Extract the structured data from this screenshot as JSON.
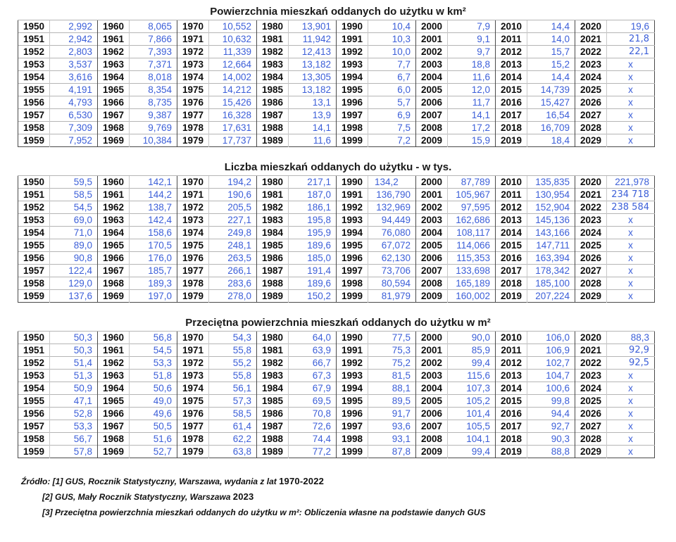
{
  "colors": {
    "value_text": "#3c5fd8",
    "year_text": "#0d0d0d"
  },
  "tables": [
    {
      "title": "Powierzchnia mieszkań oddanych do użytku w km²",
      "rows": [
        [
          "1950",
          "2,992",
          "1960",
          "8,065",
          "1970",
          "10,552",
          "1980",
          "13,901",
          "1990",
          "10,4",
          "2000",
          "7,9",
          "2010",
          "14,4",
          "2020",
          "19,6"
        ],
        [
          "1951",
          "2,942",
          "1961",
          "7,866",
          "1971",
          "10,632",
          "1981",
          "11,942",
          "1991",
          "10,3",
          "2001",
          "9,1",
          "2011",
          "14,0",
          "2021",
          "21,8"
        ],
        [
          "1952",
          "2,803",
          "1962",
          "7,393",
          "1972",
          "11,339",
          "1982",
          "12,413",
          "1992",
          "10,0",
          "2002",
          "9,7",
          "2012",
          "15,7",
          "2022",
          "22,1"
        ],
        [
          "1953",
          "3,537",
          "1963",
          "7,371",
          "1973",
          "12,664",
          "1983",
          "13,182",
          "1993",
          "7,7",
          "2003",
          "18,8",
          "2013",
          "15,2",
          "2023",
          "x"
        ],
        [
          "1954",
          "3,616",
          "1964",
          "8,018",
          "1974",
          "14,002",
          "1984",
          "13,305",
          "1994",
          "6,7",
          "2004",
          "11,6",
          "2014",
          "14,4",
          "2024",
          "x"
        ],
        [
          "1955",
          "4,191",
          "1965",
          "8,354",
          "1975",
          "14,212",
          "1985",
          "13,182",
          "1995",
          "6,0",
          "2005",
          "12,0",
          "2015",
          "14,739",
          "2025",
          "x"
        ],
        [
          "1956",
          "4,793",
          "1966",
          "8,735",
          "1976",
          "15,426",
          "1986",
          "13,1",
          "1996",
          "5,7",
          "2006",
          "11,7",
          "2016",
          "15,427",
          "2026",
          "x"
        ],
        [
          "1957",
          "6,530",
          "1967",
          "9,387",
          "1977",
          "16,328",
          "1987",
          "13,9",
          "1997",
          "6,9",
          "2007",
          "14,1",
          "2017",
          "16,54",
          "2027",
          "x"
        ],
        [
          "1958",
          "7,309",
          "1968",
          "9,769",
          "1978",
          "17,631",
          "1988",
          "14,1",
          "1998",
          "7,5",
          "2008",
          "17,2",
          "2018",
          "16,709",
          "2028",
          "x"
        ],
        [
          "1959",
          "7,952",
          "1969",
          "10,384",
          "1979",
          "17,737",
          "1989",
          "11,6",
          "1999",
          "7,2",
          "2009",
          "15,9",
          "2019",
          "18,4",
          "2029",
          "x"
        ]
      ]
    },
    {
      "title": "Liczba mieszkań oddanych do użytku - w tys.",
      "rows": [
        [
          "1950",
          "59,5",
          "1960",
          "142,1",
          "1970",
          "194,2",
          "1980",
          "217,1",
          "1990",
          "134,2",
          "2000",
          "87,789",
          "2010",
          "135,835",
          "2020",
          "221,978"
        ],
        [
          "1951",
          "58,5",
          "1961",
          "144,2",
          "1971",
          "190,6",
          "1981",
          "187,0",
          "1991",
          "136,790",
          "2001",
          "105,967",
          "2011",
          "130,954",
          "2021",
          "234 718"
        ],
        [
          "1952",
          "54,5",
          "1962",
          "138,7",
          "1972",
          "205,5",
          "1982",
          "186,1",
          "1992",
          "132,969",
          "2002",
          "97,595",
          "2012",
          "152,904",
          "2022",
          "238 584"
        ],
        [
          "1953",
          "69,0",
          "1963",
          "142,4",
          "1973",
          "227,1",
          "1983",
          "195,8",
          "1993",
          "94,449",
          "2003",
          "162,686",
          "2013",
          "145,136",
          "2023",
          "x"
        ],
        [
          "1954",
          "71,0",
          "1964",
          "158,6",
          "1974",
          "249,8",
          "1984",
          "195,9",
          "1994",
          "76,080",
          "2004",
          "108,117",
          "2014",
          "143,166",
          "2024",
          "x"
        ],
        [
          "1955",
          "89,0",
          "1965",
          "170,5",
          "1975",
          "248,1",
          "1985",
          "189,6",
          "1995",
          "67,072",
          "2005",
          "114,066",
          "2015",
          "147,711",
          "2025",
          "x"
        ],
        [
          "1956",
          "90,8",
          "1966",
          "176,0",
          "1976",
          "263,5",
          "1986",
          "185,0",
          "1996",
          "62,130",
          "2006",
          "115,353",
          "2016",
          "163,394",
          "2026",
          "x"
        ],
        [
          "1957",
          "122,4",
          "1967",
          "185,7",
          "1977",
          "266,1",
          "1987",
          "191,4",
          "1997",
          "73,706",
          "2007",
          "133,698",
          "2017",
          "178,342",
          "2027",
          "x"
        ],
        [
          "1958",
          "129,0",
          "1968",
          "189,3",
          "1978",
          "283,6",
          "1988",
          "189,6",
          "1998",
          "80,594",
          "2008",
          "165,189",
          "2018",
          "185,100",
          "2028",
          "x"
        ],
        [
          "1959",
          "137,6",
          "1969",
          "197,0",
          "1979",
          "278,0",
          "1989",
          "150,2",
          "1999",
          "81,979",
          "2009",
          "160,002",
          "2019",
          "207,224",
          "2029",
          "x"
        ]
      ]
    },
    {
      "title": "Przeciętna powierzchnia mieszkań oddanych do użytku w m²",
      "rows": [
        [
          "1950",
          "50,3",
          "1960",
          "56,8",
          "1970",
          "54,3",
          "1980",
          "64,0",
          "1990",
          "77,5",
          "2000",
          "90,0",
          "2010",
          "106,0",
          "2020",
          "88,3"
        ],
        [
          "1951",
          "50,3",
          "1961",
          "54,5",
          "1971",
          "55,8",
          "1981",
          "63,9",
          "1991",
          "75,3",
          "2001",
          "85,9",
          "2011",
          "106,9",
          "2021",
          "92,9"
        ],
        [
          "1952",
          "51,4",
          "1962",
          "53,3",
          "1972",
          "55,2",
          "1982",
          "66,7",
          "1992",
          "75,2",
          "2002",
          "99,4",
          "2012",
          "102,7",
          "2022",
          "92,5"
        ],
        [
          "1953",
          "51,3",
          "1963",
          "51,8",
          "1973",
          "55,8",
          "1983",
          "67,3",
          "1993",
          "81,5",
          "2003",
          "115,6",
          "2013",
          "104,7",
          "2023",
          "x"
        ],
        [
          "1954",
          "50,9",
          "1964",
          "50,6",
          "1974",
          "56,1",
          "1984",
          "67,9",
          "1994",
          "88,1",
          "2004",
          "107,3",
          "2014",
          "100,6",
          "2024",
          "x"
        ],
        [
          "1955",
          "47,1",
          "1965",
          "49,0",
          "1975",
          "57,3",
          "1985",
          "69,5",
          "1995",
          "89,5",
          "2005",
          "105,2",
          "2015",
          "99,8",
          "2025",
          "x"
        ],
        [
          "1956",
          "52,8",
          "1966",
          "49,6",
          "1976",
          "58,5",
          "1986",
          "70,8",
          "1996",
          "91,7",
          "2006",
          "101,4",
          "2016",
          "94,4",
          "2026",
          "x"
        ],
        [
          "1957",
          "53,3",
          "1967",
          "50,5",
          "1977",
          "61,4",
          "1987",
          "72,6",
          "1997",
          "93,6",
          "2007",
          "105,5",
          "2017",
          "92,7",
          "2027",
          "x"
        ],
        [
          "1958",
          "56,7",
          "1968",
          "51,6",
          "1978",
          "62,2",
          "1988",
          "74,4",
          "1998",
          "93,1",
          "2008",
          "104,1",
          "2018",
          "90,3",
          "2028",
          "x"
        ],
        [
          "1959",
          "57,8",
          "1969",
          "52,7",
          "1979",
          "63,8",
          "1989",
          "77,2",
          "1999",
          "87,8",
          "2009",
          "99,4",
          "2019",
          "88,8",
          "2029",
          "x"
        ]
      ]
    }
  ],
  "footer": {
    "lines": [
      {
        "italic": "Źródło: [1] GUS, Rocznik Statystyczny, Warszawa, wydania z lat ",
        "regular": "1970-2022"
      },
      {
        "italic": "[2] GUS, Mały Rocznik Statystyczny, Warszawa ",
        "regular": "2023"
      },
      {
        "italic": "[3] Przeciętna powierzchnia mieszkań oddanych do użytku w m²: Obliczenia własne na podstawie danych GUS",
        "regular": ""
      }
    ]
  }
}
